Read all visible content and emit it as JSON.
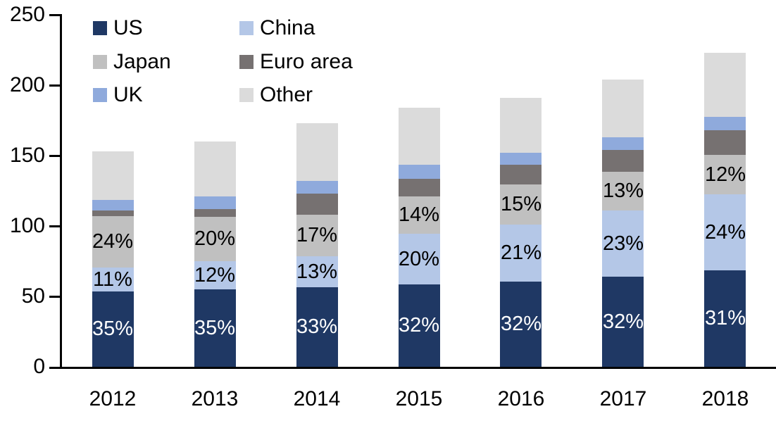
{
  "chart_data": {
    "type": "bar",
    "variant": "stacked-vertical",
    "title": "",
    "categories": [
      "2012",
      "2013",
      "2014",
      "2015",
      "2016",
      "2017",
      "2018"
    ],
    "series": [
      {
        "name": "US",
        "color": "#1F3864",
        "values": [
          53.5,
          55.0,
          56.5,
          58.5,
          60.5,
          64.0,
          68.5
        ],
        "labels": [
          "35%",
          "35%",
          "33%",
          "32%",
          "32%",
          "32%",
          "31%"
        ],
        "label_color": "#FFFFFF"
      },
      {
        "name": "China",
        "color": "#B4C7E7",
        "values": [
          17.0,
          20.0,
          22.0,
          36.0,
          40.5,
          47.0,
          54.0
        ],
        "labels": [
          "11%",
          "12%",
          "13%",
          "20%",
          "21%",
          "23%",
          "24%"
        ],
        "label_color": "#000000"
      },
      {
        "name": "Japan",
        "color": "#C0C0C0",
        "values": [
          36.5,
          31.5,
          29.5,
          26.5,
          28.5,
          27.5,
          28.0
        ],
        "labels": [
          "24%",
          "20%",
          "17%",
          "14%",
          "15%",
          "13%",
          "12%"
        ],
        "label_color": "#000000"
      },
      {
        "name": "Euro area",
        "color": "#767171",
        "values": [
          4.0,
          5.5,
          15.0,
          12.5,
          14.0,
          15.5,
          17.5
        ],
        "labels": [
          "",
          "",
          "",
          "",
          "",
          "",
          ""
        ],
        "label_color": "#000000"
      },
      {
        "name": "UK",
        "color": "#8FAADC",
        "values": [
          7.5,
          9.0,
          9.0,
          10.0,
          8.5,
          9.0,
          9.5
        ],
        "labels": [
          "",
          "",
          "",
          "",
          "",
          "",
          ""
        ],
        "label_color": "#000000"
      },
      {
        "name": "Other",
        "color": "#DBDBDB",
        "values": [
          34.5,
          39.0,
          41.0,
          40.5,
          39.0,
          41.0,
          45.5
        ],
        "labels": [
          "",
          "",
          "",
          "",
          "",
          "",
          ""
        ],
        "label_color": "#000000"
      }
    ],
    "stack_order_bottom_to_top": [
      "US",
      "China",
      "Japan",
      "Euro area",
      "UK",
      "Other"
    ],
    "bar_totals": [
      153,
      160,
      173,
      184,
      191,
      204,
      223
    ],
    "y_axis": {
      "min": 0,
      "max": 250,
      "step": 50,
      "tick_labels": [
        "0",
        "50",
        "100",
        "150",
        "200",
        "250"
      ]
    },
    "x_axis": {
      "tick_labels": [
        "2012",
        "2013",
        "2014",
        "2015",
        "2016",
        "2017",
        "2018"
      ]
    },
    "legend": {
      "position": "top-left",
      "columns": [
        [
          "US",
          "Japan",
          "UK"
        ],
        [
          "China",
          "Euro area",
          "Other"
        ]
      ]
    },
    "grid": "off",
    "axis_color": "#000000",
    "background_color": "#FFFFFF"
  }
}
